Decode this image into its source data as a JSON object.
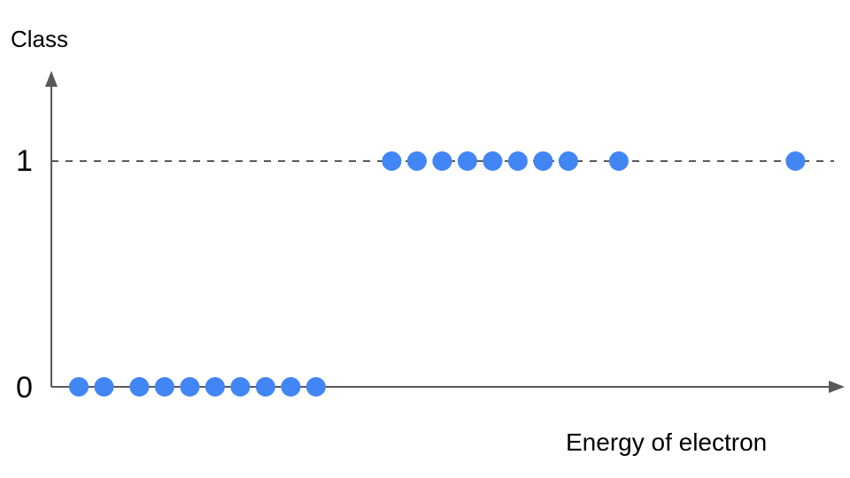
{
  "chart_data": {
    "type": "scatter",
    "title": "",
    "xlabel": "Energy of electron",
    "ylabel": "Class",
    "y_ticks": [
      "0",
      "1"
    ],
    "reference_lines": [
      {
        "y": 1,
        "style": "dashed"
      }
    ],
    "grid": false,
    "point_color": "#4285F4",
    "axis_color": "#595959",
    "series": [
      {
        "x": [
          1,
          2,
          3.4,
          4.4,
          5.4,
          6.4,
          7.4,
          8.4,
          9.4,
          10.4,
          13.4,
          14.4,
          15.4,
          16.4,
          17.4,
          18.4,
          19.4,
          20.4,
          22.4,
          29.4
        ],
        "y": [
          0,
          0,
          0,
          0,
          0,
          0,
          0,
          0,
          0,
          0,
          1,
          1,
          1,
          1,
          1,
          1,
          1,
          1,
          1,
          1
        ]
      }
    ],
    "xlim": [
      0,
      31
    ]
  }
}
